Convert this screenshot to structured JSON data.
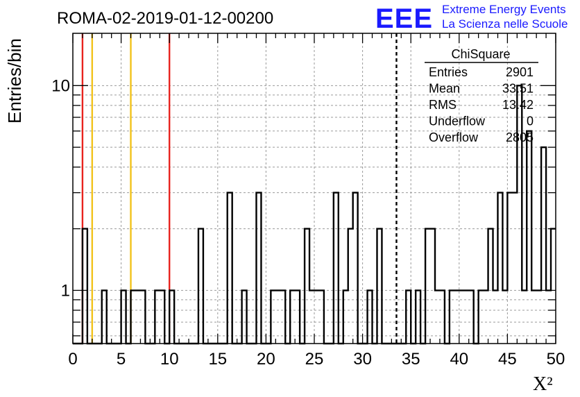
{
  "title": "ROMA-02-2019-01-12-00200",
  "logo": {
    "mark": "EEE",
    "line1": "Extreme Energy Events",
    "line2": "La Scienza nelle Scuole"
  },
  "chart_data": {
    "type": "bar",
    "style": "step-histogram",
    "xlabel": "X²",
    "ylabel": "Entries/bin",
    "xlim": [
      0,
      50
    ],
    "ylim": [
      0.55,
      18
    ],
    "yscale": "log",
    "grid": true,
    "x_ticks": [
      "0",
      "5",
      "10",
      "15",
      "20",
      "25",
      "30",
      "35",
      "40",
      "45",
      "50"
    ],
    "y_ticks": [
      "1",
      "10"
    ],
    "bin_width": 0.5,
    "series": [
      {
        "values": [
          0,
          0,
          2,
          0,
          0,
          0,
          1,
          0,
          0,
          0,
          1,
          0,
          1,
          1,
          1,
          0,
          0,
          1,
          1,
          0,
          1,
          0,
          0,
          0,
          0,
          0,
          2,
          0,
          0,
          0,
          0,
          0,
          3,
          0,
          0,
          1,
          0,
          0,
          3,
          0,
          0,
          1,
          1,
          1,
          0,
          1,
          1,
          0,
          2,
          1,
          1,
          1,
          0,
          0,
          3,
          0,
          1,
          2,
          3,
          0,
          0,
          1,
          0,
          2,
          0,
          0,
          0,
          0,
          0,
          1,
          0,
          1,
          0,
          2,
          2,
          1,
          1,
          0,
          1,
          1,
          1,
          1,
          1,
          0,
          1,
          1,
          2,
          1,
          3,
          1,
          3,
          3,
          10,
          1,
          6,
          1,
          1,
          5,
          1,
          2
        ]
      }
    ],
    "vertical_lines": [
      {
        "x": 1,
        "color": "#e8231e",
        "style": "solid"
      },
      {
        "x": 2,
        "color": "#f2c21b",
        "style": "solid"
      },
      {
        "x": 6,
        "color": "#f2c21b",
        "style": "solid"
      },
      {
        "x": 10,
        "color": "#e8231e",
        "style": "solid"
      },
      {
        "x": 33.51,
        "color": "#000000",
        "style": "dashed"
      }
    ],
    "stats": {
      "title": "ChiSquare",
      "rows": [
        {
          "label": "Entries",
          "value": "2901"
        },
        {
          "label": "Mean",
          "value": "33.51"
        },
        {
          "label": "RMS",
          "value": "13.42"
        },
        {
          "label": "Underflow",
          "value": "0"
        },
        {
          "label": "Overflow",
          "value": "2805"
        }
      ]
    }
  }
}
